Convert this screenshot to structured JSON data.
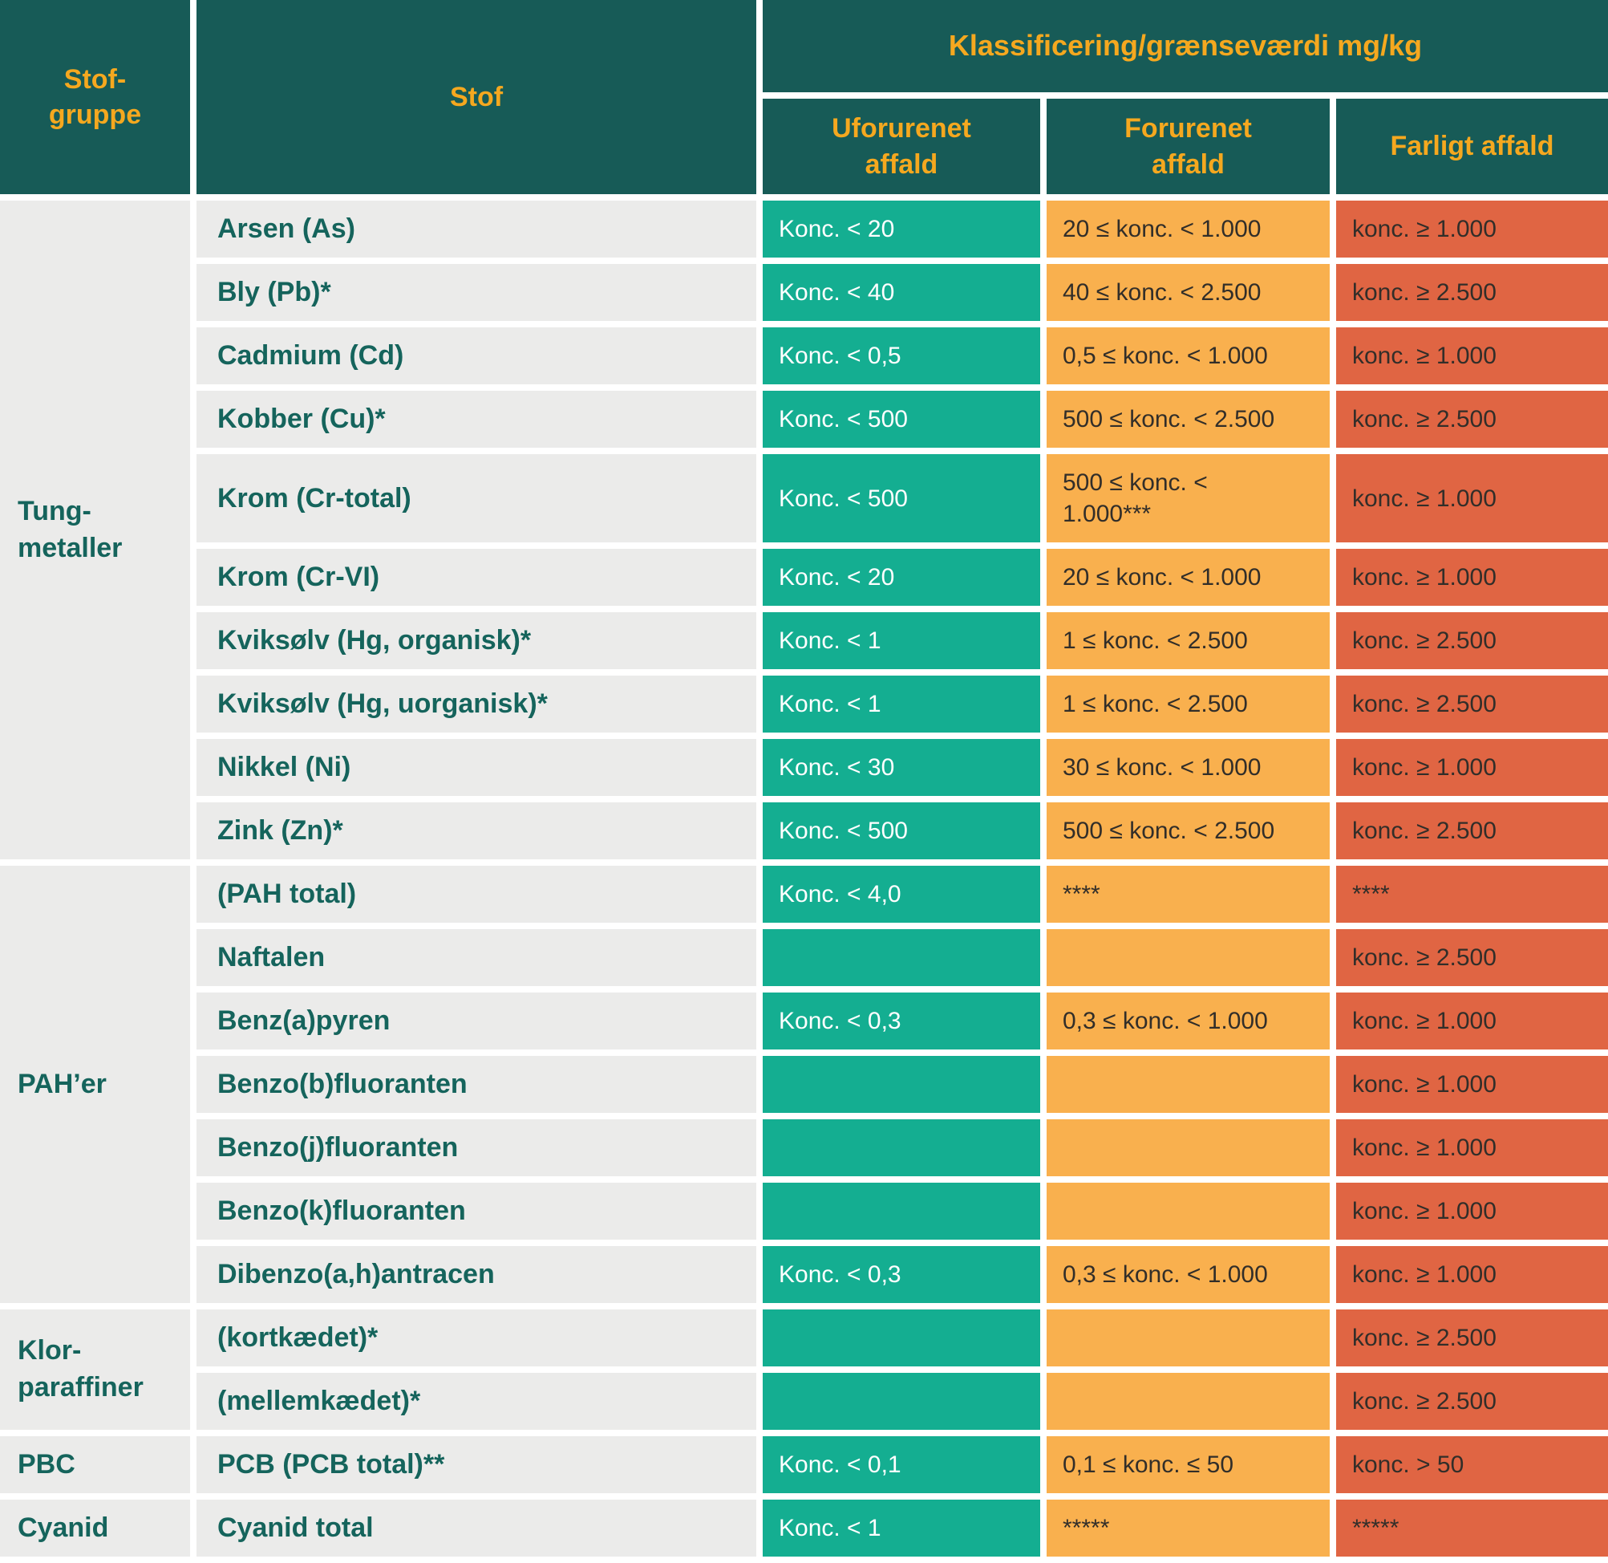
{
  "table": {
    "headers": {
      "stof_gruppe": "Stof-\ngruppe",
      "stof": "Stof",
      "klassificering": "Klassificering/grænseværdi mg/kg",
      "uforurenet": "Uforurenet\naffald",
      "forurenet": "Forurenet\naffald",
      "farligt": "Farligt affald"
    },
    "groups": [
      {
        "label": "Tung-\nmetaller",
        "rows": [
          {
            "stof": "Arsen (As)",
            "uforurenet": "Konc. < 20",
            "forurenet": "20 ≤ konc. < 1.000",
            "farligt": "konc. ≥ 1.000"
          },
          {
            "stof": "Bly (Pb)*",
            "uforurenet": "Konc. < 40",
            "forurenet": "40 ≤ konc. < 2.500",
            "farligt": "konc. ≥ 2.500"
          },
          {
            "stof": "Cadmium (Cd)",
            "uforurenet": "Konc. < 0,5",
            "forurenet": "0,5 ≤ konc. < 1.000",
            "farligt": "konc. ≥ 1.000"
          },
          {
            "stof": "Kobber (Cu)*",
            "uforurenet": "Konc. < 500",
            "forurenet": "500 ≤ konc. < 2.500",
            "farligt": "konc. ≥ 2.500"
          },
          {
            "stof": "Krom (Cr-total)",
            "uforurenet": "Konc. < 500",
            "forurenet": "500 ≤ konc. <\n1.000***",
            "farligt": "konc. ≥ 1.000"
          },
          {
            "stof": "Krom (Cr-VI)",
            "uforurenet": "Konc. < 20",
            "forurenet": "20 ≤ konc. < 1.000",
            "farligt": "konc. ≥ 1.000"
          },
          {
            "stof": "Kviksølv (Hg, organisk)*",
            "uforurenet": "Konc. < 1",
            "forurenet": "1 ≤ konc. < 2.500",
            "farligt": "konc. ≥ 2.500"
          },
          {
            "stof": "Kviksølv (Hg, uorganisk)*",
            "uforurenet": "Konc. < 1",
            "forurenet": "1 ≤ konc. < 2.500",
            "farligt": "konc. ≥ 2.500"
          },
          {
            "stof": "Nikkel (Ni)",
            "uforurenet": "Konc. < 30",
            "forurenet": "30 ≤ konc. < 1.000",
            "farligt": "konc. ≥ 1.000"
          },
          {
            "stof": "Zink (Zn)*",
            "uforurenet": "Konc. < 500",
            "forurenet": "500 ≤ konc. < 2.500",
            "farligt": "konc. ≥ 2.500"
          }
        ]
      },
      {
        "label": "PAH’er",
        "rows": [
          {
            "stof": "(PAH total)",
            "uforurenet": "Konc. < 4,0",
            "forurenet": "****",
            "farligt": "****"
          },
          {
            "stof": "Naftalen",
            "uforurenet": "",
            "forurenet": "",
            "farligt": "konc. ≥ 2.500"
          },
          {
            "stof": "Benz(a)pyren",
            "uforurenet": "Konc. < 0,3",
            "forurenet": "0,3 ≤ konc. < 1.000",
            "farligt": "konc. ≥ 1.000"
          },
          {
            "stof": "Benzo(b)fluoranten",
            "uforurenet": "",
            "forurenet": "",
            "farligt": "konc. ≥ 1.000"
          },
          {
            "stof": "Benzo(j)fluoranten",
            "uforurenet": "",
            "forurenet": "",
            "farligt": "konc. ≥ 1.000"
          },
          {
            "stof": "Benzo(k)fluoranten",
            "uforurenet": "",
            "forurenet": "",
            "farligt": "konc. ≥ 1.000"
          },
          {
            "stof": "Dibenzo(a,h)antracen",
            "uforurenet": "Konc. < 0,3",
            "forurenet": "0,3 ≤ konc. < 1.000",
            "farligt": "konc. ≥ 1.000"
          }
        ]
      },
      {
        "label": "Klor-\nparaffiner",
        "rows": [
          {
            "stof": "(kortkædet)*",
            "uforurenet": "",
            "forurenet": "",
            "farligt": "konc. ≥ 2.500"
          },
          {
            "stof": "(mellemkædet)*",
            "uforurenet": "",
            "forurenet": "",
            "farligt": "konc. ≥ 2.500"
          }
        ]
      },
      {
        "label": "PBC",
        "rows": [
          {
            "stof": "PCB (PCB total)**",
            "uforurenet": "Konc. < 0,1",
            "forurenet": "0,1 ≤ konc. ≤ 50",
            "farligt": "konc. > 50"
          }
        ]
      },
      {
        "label": "Cyanid",
        "rows": [
          {
            "stof": "Cyanid total",
            "uforurenet": "Konc. < 1",
            "forurenet": "*****",
            "farligt": "*****"
          }
        ]
      }
    ]
  },
  "colors": {
    "header_bg": "#175B57",
    "header_text": "#F5A81F",
    "row_bg": "#EBEBEA",
    "row_text": "#15645C",
    "green": "#14AE91",
    "orange": "#F9B04E",
    "red": "#E06543",
    "value_dark_text": "#322E29",
    "gap": "#FFFFFF"
  }
}
